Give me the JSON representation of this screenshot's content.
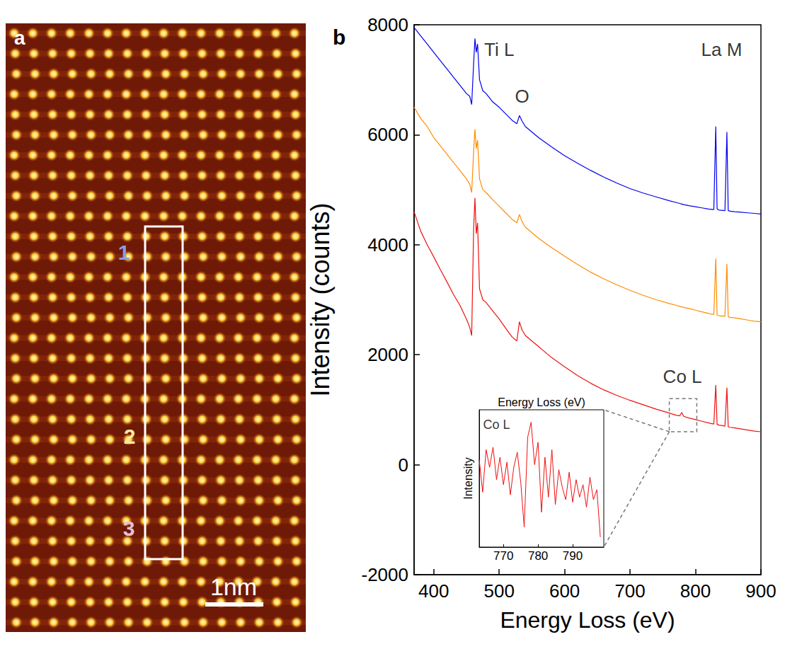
{
  "image_panel": {
    "label": "a",
    "region_labels": [
      "1",
      "2",
      "3"
    ],
    "scale_bar": "1nm"
  },
  "chart_data": [
    {
      "type": "line",
      "panel_label": "b",
      "x_label": "Energy Loss (eV)",
      "y_label": "Intensity (counts)",
      "xlim": [
        370,
        900
      ],
      "xticks": [
        400,
        500,
        600,
        700,
        800,
        900
      ],
      "ylim": [
        -2000,
        8000
      ],
      "yticks": [
        -2000,
        0,
        2000,
        4000,
        6000,
        8000
      ],
      "grid": false,
      "x": [
        370,
        380,
        390,
        400,
        410,
        420,
        430,
        440,
        450,
        455,
        458,
        461,
        463,
        465,
        467,
        470,
        475,
        480,
        490,
        500,
        510,
        520,
        527,
        531,
        535,
        540,
        550,
        560,
        580,
        600,
        620,
        640,
        660,
        680,
        700,
        720,
        740,
        760,
        770,
        776,
        779,
        782,
        790,
        800,
        810,
        820,
        828,
        831,
        833,
        836,
        845,
        848,
        850,
        853,
        860,
        870,
        880,
        890,
        900
      ],
      "series": [
        {
          "color": "#0000ee",
          "values": [
            7950,
            7800,
            7650,
            7500,
            7350,
            7200,
            7050,
            6900,
            6750,
            6700,
            6550,
            7300,
            7750,
            7500,
            7650,
            7000,
            6800,
            6750,
            6600,
            6500,
            6380,
            6260,
            6200,
            6350,
            6250,
            6150,
            6050,
            5950,
            5780,
            5620,
            5480,
            5350,
            5230,
            5120,
            5020,
            4940,
            4870,
            4800,
            4770,
            4750,
            4740,
            4730,
            4710,
            4690,
            4670,
            4650,
            4640,
            6150,
            4650,
            4630,
            4620,
            6050,
            4620,
            4610,
            4600,
            4590,
            4580,
            4570,
            4560
          ]
        },
        {
          "color": "#ff8c00",
          "values": [
            6500,
            6300,
            6150,
            5950,
            5800,
            5650,
            5500,
            5350,
            5200,
            5100,
            4950,
            5700,
            6100,
            5750,
            5900,
            5200,
            5000,
            4950,
            4820,
            4700,
            4580,
            4460,
            4400,
            4550,
            4420,
            4320,
            4220,
            4120,
            3950,
            3790,
            3640,
            3500,
            3380,
            3270,
            3170,
            3080,
            3000,
            2930,
            2900,
            2880,
            2870,
            2860,
            2840,
            2810,
            2780,
            2750,
            2730,
            3750,
            2720,
            2710,
            2700,
            3650,
            2690,
            2680,
            2670,
            2650,
            2630,
            2610,
            2600
          ]
        },
        {
          "color": "#ee1111",
          "values": [
            4600,
            4250,
            4000,
            3780,
            3550,
            3330,
            3100,
            2900,
            2650,
            2500,
            2350,
            4300,
            4850,
            4200,
            4400,
            3200,
            3000,
            2950,
            2800,
            2650,
            2480,
            2320,
            2250,
            2600,
            2450,
            2350,
            2250,
            2150,
            1950,
            1780,
            1620,
            1480,
            1360,
            1260,
            1170,
            1090,
            1010,
            940,
            900,
            890,
            950,
            880,
            850,
            820,
            790,
            760,
            740,
            1450,
            730,
            720,
            700,
            1400,
            690,
            680,
            670,
            650,
            630,
            610,
            600
          ]
        }
      ],
      "annotations": [
        {
          "text": "Ti L",
          "x": 500,
          "y": 7550
        },
        {
          "text": "O",
          "x": 535,
          "y": 6700
        },
        {
          "text": "La M",
          "x": 840,
          "y": 7550
        },
        {
          "text": "Co L",
          "x": 780,
          "y": 1600
        }
      ]
    },
    {
      "type": "line",
      "x_label": "Energy Loss (eV)",
      "y_label": "Intensity",
      "tick_labels": "x",
      "xlim": [
        763,
        799
      ],
      "xticks": [
        770,
        780,
        790
      ],
      "ylim": [
        -3,
        2.5
      ],
      "grid": false,
      "x": [
        763,
        764,
        765,
        766,
        767,
        768,
        769,
        770,
        771,
        772,
        773,
        774,
        775,
        776,
        777,
        778,
        779,
        780,
        781,
        782,
        783,
        784,
        785,
        786,
        787,
        788,
        789,
        790,
        791,
        792,
        793,
        794,
        795,
        796,
        797,
        798
      ],
      "series": [
        {
          "color": "#ee1111",
          "values": [
            0.5,
            -0.8,
            0.9,
            0.2,
            1.0,
            -0.3,
            0.6,
            -0.5,
            0.4,
            -0.9,
            0.2,
            0.8,
            -0.4,
            -2.2,
            1.4,
            2.0,
            0.3,
            1.2,
            -1.6,
            0.6,
            -1.0,
            0.9,
            -1.3,
            0.1,
            -0.6,
            -1.1,
            0.0,
            -1.2,
            -0.3,
            -1.0,
            -0.5,
            -1.4,
            -0.2,
            -1.1,
            -0.7,
            -2.6
          ]
        }
      ],
      "annotations": [
        {
          "text": "Co L",
          "x": 768,
          "y": 1.9
        }
      ]
    }
  ]
}
